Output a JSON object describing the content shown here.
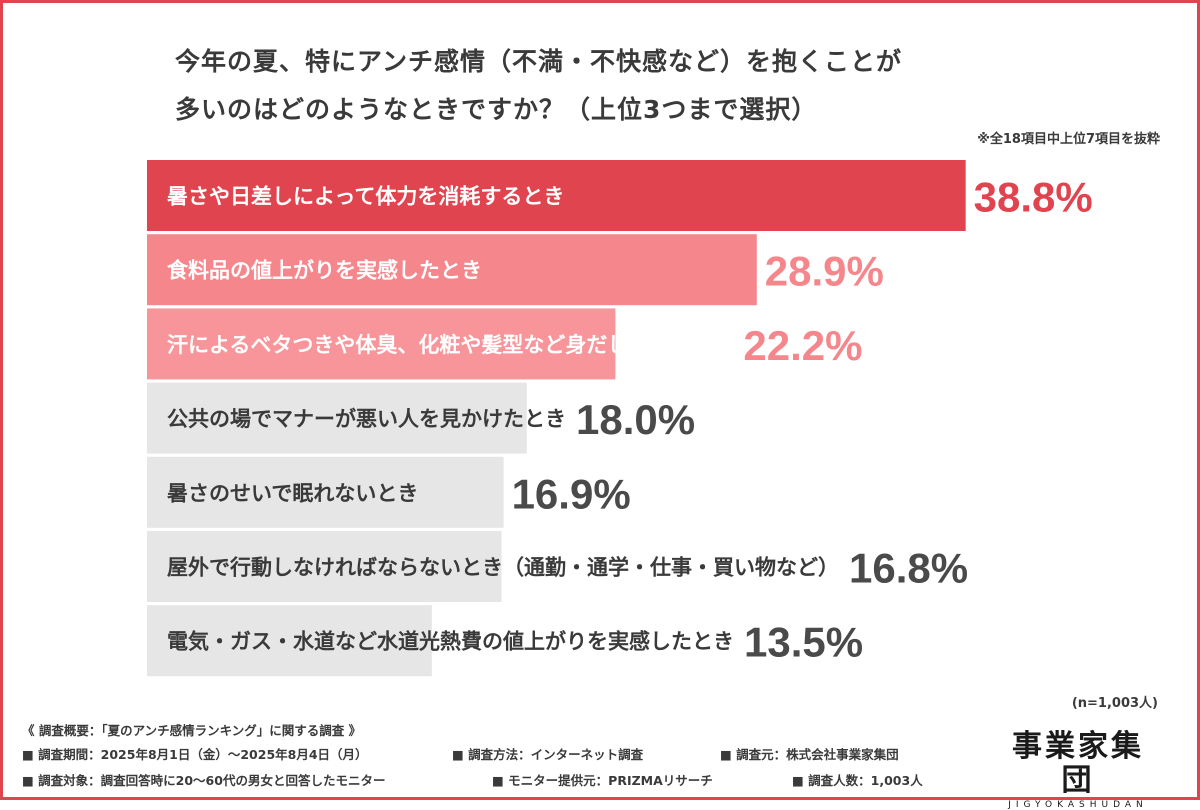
{
  "title_lines": [
    "今年の夏、特にアンチ感情（不満・不快感など）を抱くことが",
    "多いのはどのようなときですか？（上位3つまで選択）"
  ],
  "note": "※全18項目中上位7項目を抜粋",
  "chart_data": {
    "type": "bar",
    "orientation": "horizontal",
    "title": "今年の夏、特にアンチ感情（不満・不快感など）を抱くことが多いのはどのようなときですか？（上位3つまで選択）",
    "categories": [
      "暑さや日差しによって体力を消耗するとき",
      "食料品の値上がりを実感したとき",
      "汗によるベタつきや体臭、化粧や髪型など身だしなみの乱れ",
      "公共の場でマナーが悪い人を見かけたとき",
      "暑さのせいで眠れないとき",
      "屋外で行動しなければならないとき（通勤・通学・仕事・買い物など）",
      "電気・ガス・水道など水道光熱費の値上がりを実感したとき"
    ],
    "values": [
      38.8,
      28.9,
      22.2,
      18.0,
      16.9,
      16.8,
      13.5
    ],
    "value_labels": [
      "38.8%",
      "28.9%",
      "22.2%",
      "18.0%",
      "16.9%",
      "16.8%",
      "13.5%"
    ],
    "unit": "%",
    "colors": {
      "top1_bar": "#e0454f",
      "top2_bar": "#f5878c",
      "top3_bar": "#f7959a",
      "other_bar": "#e6e6e6",
      "top1_value": "#e0454f",
      "top2_value": "#f5878c",
      "other_value": "#4a4a4a"
    }
  },
  "sample_size": "(n=1,003人)",
  "footer": {
    "heading": "《 調査概要：「夏のアンチ感情ランキング」に関する調査 》",
    "period": "■ 調査期間：2025年8月1日（金）〜2025年8月4日（月）",
    "method": "■ 調査方法：インターネット調査",
    "organizer": "■ 調査元：株式会社事業家集団",
    "target": "■ 調査対象：調査回答時に20〜60代の男女と回答したモニター",
    "provider": "■ モニター提供元：PRIZMAリサーチ",
    "count": "■ 調査人数：1,003人"
  },
  "logo": {
    "main": "事業家集団",
    "sub": "JIGYOKASHUDAN"
  }
}
